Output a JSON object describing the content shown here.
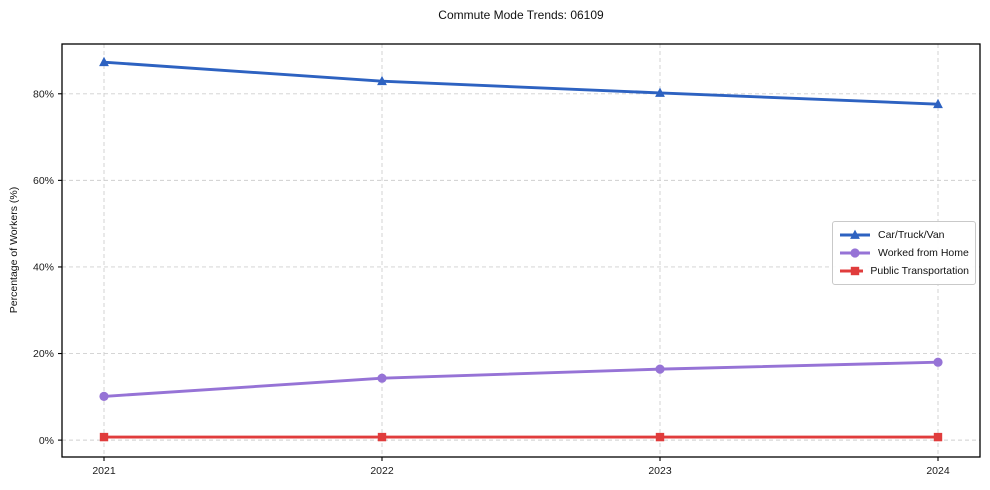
{
  "chart_data": {
    "type": "line",
    "title": "Commute Mode Trends: 06109",
    "ylabel": "Percentage of Workers (%)",
    "x": [
      "2021",
      "2022",
      "2023",
      "2024"
    ],
    "xtick_labels": [
      "2021",
      "2022",
      "2023",
      "2024"
    ],
    "yticks": [
      0,
      20,
      40,
      60,
      80
    ],
    "ytick_labels": [
      "0%",
      "20%",
      "40%",
      "60%",
      "80%"
    ],
    "ylim": [
      -3.9,
      91.5
    ],
    "grid": true,
    "legend_position": "center right",
    "series": [
      {
        "name": "Car/Truck/Van",
        "values": [
          87.3,
          82.9,
          80.2,
          77.6
        ],
        "color": "#2d62c1",
        "marker": "triangle"
      },
      {
        "name": "Worked from Home",
        "values": [
          10.1,
          14.3,
          16.4,
          18.0
        ],
        "color": "#9673d6",
        "marker": "circle"
      },
      {
        "name": "Public Transportation",
        "values": [
          0.7,
          0.7,
          0.7,
          0.7
        ],
        "color": "#e03c3c",
        "marker": "square"
      }
    ],
    "colors": {
      "gridline": "#cfcfcf",
      "spine": "#000000",
      "tick_label": "#1a1a1a"
    }
  }
}
